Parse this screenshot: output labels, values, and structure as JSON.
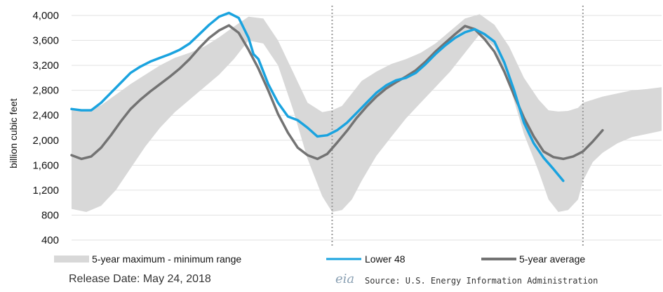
{
  "chart_data": {
    "type": "line",
    "title": "",
    "ylabel": "billion cubic feet",
    "xlabel": "",
    "ylim": [
      400,
      4000
    ],
    "y_ticks": [
      "4,000",
      "3,600",
      "3,200",
      "2,800",
      "2,400",
      "2,000",
      "1,600",
      "1,200",
      "800",
      "400"
    ],
    "y_tick_values": [
      4000,
      3600,
      3200,
      2800,
      2400,
      2000,
      1600,
      1200,
      800,
      400
    ],
    "x_range": [
      0,
      120
    ],
    "year_boundaries": [
      53,
      104
    ],
    "grid": "horizontal",
    "legend_position": "bottom",
    "legend": [
      {
        "label": "5-year maximum - minimum range",
        "color": "#d8d8d8"
      },
      {
        "label": "Lower 48",
        "color": "#1aa3df"
      },
      {
        "label": "5-year average",
        "color": "#737373"
      }
    ],
    "series": [
      {
        "name": "5-year maximum - minimum range",
        "kind": "band",
        "x": [
          0,
          3,
          6,
          9,
          12,
          15,
          18,
          21,
          24,
          27,
          30,
          33,
          36,
          39,
          42,
          45,
          48,
          51,
          53,
          55,
          57,
          59,
          62,
          65,
          68,
          71,
          74,
          77,
          80,
          83,
          86,
          89,
          92,
          95,
          97,
          99,
          101,
          103,
          104,
          106,
          108,
          111,
          114,
          117,
          120
        ],
        "upper": [
          2500,
          2480,
          2560,
          2730,
          2900,
          3050,
          3200,
          3320,
          3400,
          3500,
          3650,
          3820,
          3980,
          3950,
          3600,
          3100,
          2600,
          2450,
          2480,
          2550,
          2750,
          2950,
          3100,
          3220,
          3300,
          3400,
          3550,
          3750,
          3950,
          4020,
          3850,
          3500,
          3000,
          2650,
          2480,
          2460,
          2470,
          2520,
          2600,
          2650,
          2700,
          2750,
          2800,
          2820,
          2850
        ],
        "lower": [
          900,
          850,
          950,
          1200,
          1550,
          1900,
          2200,
          2450,
          2650,
          2850,
          3050,
          3300,
          3600,
          3550,
          3200,
          2500,
          1700,
          1100,
          850,
          880,
          1050,
          1350,
          1750,
          2050,
          2350,
          2600,
          2850,
          3100,
          3400,
          3700,
          3500,
          2900,
          2100,
          1500,
          1050,
          850,
          880,
          1050,
          1350,
          1650,
          1800,
          1950,
          2050,
          2100,
          2150
        ]
      },
      {
        "name": "Lower 48",
        "kind": "line",
        "color": "#1aa3df",
        "x": [
          0,
          2,
          4,
          6,
          8,
          10,
          12,
          14,
          16,
          18,
          20,
          22,
          24,
          26,
          28,
          30,
          32,
          34,
          36,
          37,
          38,
          40,
          42,
          44,
          46,
          48,
          50,
          52,
          54,
          56,
          58,
          60,
          62,
          64,
          66,
          68,
          70,
          72,
          74,
          76,
          78,
          80,
          82,
          84,
          86,
          88,
          90,
          92,
          94,
          96,
          98,
          100
        ],
        "y": [
          2500,
          2480,
          2480,
          2600,
          2760,
          2920,
          3080,
          3180,
          3260,
          3320,
          3380,
          3450,
          3550,
          3700,
          3850,
          3980,
          4040,
          3960,
          3640,
          3380,
          3300,
          2900,
          2600,
          2380,
          2320,
          2200,
          2060,
          2080,
          2160,
          2280,
          2440,
          2600,
          2760,
          2880,
          2960,
          3000,
          3080,
          3220,
          3380,
          3520,
          3640,
          3730,
          3780,
          3700,
          3580,
          3250,
          2800,
          2280,
          1950,
          1720,
          1540,
          1350
        ]
      },
      {
        "name": "5-year average",
        "kind": "line",
        "color": "#737373",
        "x": [
          0,
          2,
          4,
          6,
          8,
          10,
          12,
          14,
          16,
          18,
          20,
          22,
          24,
          26,
          28,
          30,
          32,
          34,
          36,
          38,
          40,
          42,
          44,
          46,
          48,
          50,
          52,
          54,
          56,
          58,
          60,
          62,
          64,
          66,
          68,
          70,
          72,
          74,
          76,
          78,
          80,
          82,
          84,
          86,
          88,
          90,
          92,
          94,
          96,
          98,
          100,
          102,
          104,
          106,
          108
        ],
        "y": [
          1760,
          1700,
          1740,
          1880,
          2080,
          2300,
          2500,
          2650,
          2780,
          2900,
          3020,
          3150,
          3300,
          3480,
          3640,
          3760,
          3840,
          3720,
          3450,
          3150,
          2800,
          2420,
          2120,
          1880,
          1760,
          1700,
          1780,
          1960,
          2150,
          2360,
          2540,
          2700,
          2830,
          2930,
          3020,
          3120,
          3260,
          3420,
          3560,
          3700,
          3830,
          3780,
          3620,
          3420,
          3100,
          2720,
          2360,
          2060,
          1820,
          1730,
          1700,
          1740,
          1820,
          1980,
          2160
        ]
      }
    ]
  },
  "footer": {
    "release": "Release Date:  May 24, 2018",
    "logo": "eia",
    "source": "Source: U.S. Energy Information Administration"
  }
}
